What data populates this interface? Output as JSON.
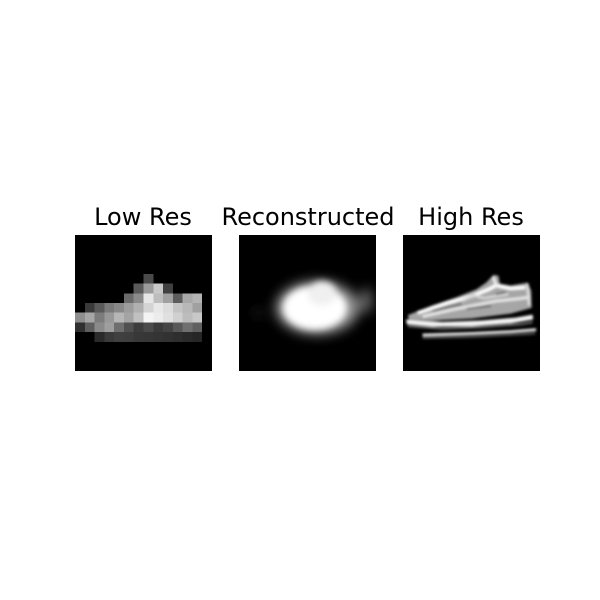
{
  "figure": {
    "background_color": "#ffffff",
    "panels": [
      {
        "title": "Low Res",
        "content": "pixelated grayscale sneaker image (low resolution)"
      },
      {
        "title": "Reconstructed",
        "content": "blurry bright blob reconstruction of sneaker"
      },
      {
        "title": "High Res",
        "content": "detailed grayscale sneaker image (high resolution)"
      }
    ]
  }
}
